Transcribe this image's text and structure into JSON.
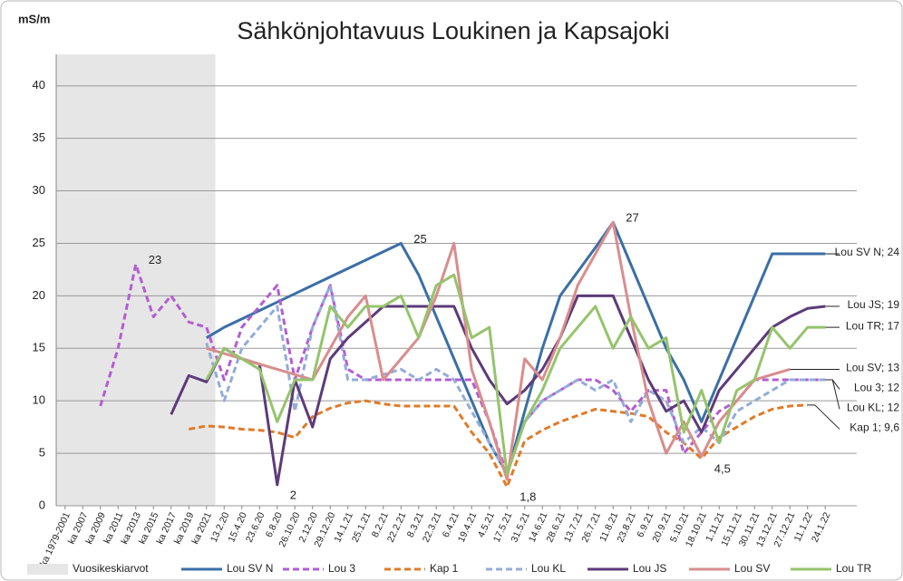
{
  "chart_data": {
    "type": "line",
    "title": "Sähkönjohtavuus Loukinen ja Kapsajoki",
    "y_label": "mS/m",
    "categories": [
      "ka 1979-2001",
      "ka 2007",
      "ka 2009",
      "ka 2011",
      "ka 2013",
      "ka 2015",
      "ka 2017",
      "ka 2019",
      "ka 2021",
      "13.2.20",
      "15.4.20",
      "23.6.20",
      "6.8.20",
      "26.10.20",
      "2.12.20",
      "29.12.20",
      "14.1.21",
      "25.1.21",
      "8.2.21",
      "22.2.21",
      "8.3.21",
      "22.3.21",
      "6.4.21",
      "19.4.21",
      "4.5.21",
      "17.5.21",
      "31.5.21",
      "14.6.21",
      "28.6.21",
      "13.7.21",
      "26.7.21",
      "11.8.21",
      "23.8.21",
      "6.9.21",
      "20.9.21",
      "5.10.21",
      "18.10.21",
      "1.11.21",
      "15.11.21",
      "30.11.21",
      "13.12.21",
      "27.12.21",
      "11.1.22",
      "24.1.22"
    ],
    "ylim": [
      0,
      43
    ],
    "yticks": [
      0,
      5,
      10,
      15,
      20,
      25,
      30,
      35,
      40
    ],
    "grid": true,
    "shaded": {
      "name": "Vuosikeskiarvot",
      "color": "#e6e6e6",
      "span": [
        0,
        8
      ]
    },
    "series": [
      {
        "name": "Lou SV N",
        "color": "#3b6fa6",
        "dashed": false,
        "end_label": "Lou SV N; 24",
        "values": [
          null,
          null,
          null,
          null,
          null,
          null,
          null,
          null,
          16,
          17,
          17.8,
          18.6,
          19.4,
          20.2,
          21,
          21.8,
          22.6,
          23.4,
          24.2,
          25,
          22,
          18,
          14,
          10,
          6,
          3,
          9,
          15,
          20,
          22.3,
          24.6,
          27,
          23,
          19,
          15,
          12,
          8,
          12,
          16,
          20,
          24,
          24,
          24,
          24
        ],
        "value_labels": [
          null,
          null,
          null,
          null,
          null,
          null,
          null,
          null,
          null,
          null,
          null,
          null,
          null,
          null,
          null,
          null,
          null,
          null,
          null,
          "25",
          null,
          null,
          null,
          null,
          null,
          null,
          null,
          null,
          null,
          null,
          null,
          "27",
          null,
          null,
          null,
          null,
          null,
          null,
          null,
          null,
          null,
          null,
          null,
          null
        ]
      },
      {
        "name": "Lou 3",
        "color": "#b45dd2",
        "dashed": true,
        "end_label": "Lou 3; 12",
        "values": [
          null,
          null,
          9.5,
          15,
          23,
          18,
          20,
          17.5,
          17,
          12,
          17,
          19,
          21,
          12,
          17,
          21,
          13,
          12,
          12,
          12,
          12,
          12,
          12,
          12,
          8,
          3,
          8,
          10,
          11,
          12,
          12,
          11,
          9,
          11,
          11,
          5,
          7,
          9,
          10,
          12,
          12,
          12,
          12,
          12
        ],
        "value_labels": [
          null,
          null,
          null,
          null,
          "23",
          null,
          null,
          null,
          null,
          null,
          null,
          null,
          null,
          null,
          null,
          null,
          null,
          null,
          null,
          null,
          null,
          null,
          null,
          null,
          null,
          null,
          null,
          null,
          null,
          null,
          null,
          null,
          null,
          null,
          null,
          null,
          null,
          null,
          null,
          null,
          null,
          null,
          null,
          null
        ]
      },
      {
        "name": "Kap 1",
        "color": "#e07b28",
        "dashed": true,
        "end_label": "Kap 1; 9,6",
        "values": [
          null,
          null,
          null,
          null,
          null,
          null,
          null,
          7.3,
          7.6,
          7.5,
          7.3,
          7.2,
          7,
          6.5,
          8.5,
          9.3,
          9.8,
          10,
          9.7,
          9.5,
          9.5,
          9.5,
          9.5,
          7,
          5,
          1.8,
          6.2,
          7.2,
          8,
          8.6,
          9.2,
          9,
          8.8,
          8.5,
          7,
          6,
          4.5,
          6.5,
          7.5,
          8.5,
          9.2,
          9.5,
          9.6,
          null
        ],
        "value_labels": [
          null,
          null,
          null,
          null,
          null,
          null,
          null,
          null,
          null,
          null,
          null,
          null,
          null,
          null,
          null,
          null,
          null,
          null,
          null,
          null,
          null,
          null,
          null,
          null,
          null,
          "1,8",
          null,
          null,
          null,
          null,
          null,
          null,
          null,
          null,
          null,
          null,
          "4,5",
          null,
          null,
          null,
          null,
          null,
          null,
          null
        ]
      },
      {
        "name": "Lou KL",
        "color": "#93acd8",
        "dashed": true,
        "end_label": "Lou KL; 12",
        "values": [
          null,
          null,
          null,
          null,
          null,
          null,
          null,
          null,
          15.5,
          10,
          15,
          17,
          19,
          9,
          17,
          21,
          12,
          12,
          12.5,
          13,
          12,
          13,
          12,
          9,
          6,
          3,
          8,
          10,
          11,
          12,
          11,
          12,
          8,
          11,
          10,
          6,
          7.5,
          6,
          9,
          10,
          11,
          12,
          12,
          12
        ]
      },
      {
        "name": "Lou JS",
        "color": "#5d3b7a",
        "dashed": false,
        "end_label": "Lou JS; 19",
        "values": [
          null,
          null,
          null,
          null,
          null,
          null,
          8.7,
          12.4,
          11.8,
          15,
          14,
          13.5,
          2,
          12,
          7.5,
          14,
          16,
          17.5,
          19,
          19,
          19,
          19,
          19,
          15,
          12,
          9.7,
          11,
          13,
          16,
          20,
          20,
          20,
          16,
          12,
          9,
          10,
          7,
          11,
          13,
          15,
          17,
          18,
          18.8,
          19
        ],
        "value_labels": [
          null,
          null,
          null,
          null,
          null,
          null,
          null,
          null,
          null,
          null,
          null,
          null,
          "2",
          null,
          null,
          null,
          null,
          null,
          null,
          null,
          null,
          null,
          null,
          null,
          null,
          null,
          null,
          null,
          null,
          null,
          null,
          null,
          null,
          null,
          null,
          null,
          null,
          null,
          null,
          null,
          null,
          null,
          null,
          null
        ]
      },
      {
        "name": "Lou SV",
        "color": "#d98d8d",
        "dashed": false,
        "end_label": "Lou SV; 13",
        "values": [
          null,
          null,
          null,
          null,
          null,
          null,
          null,
          null,
          15,
          14.5,
          14,
          13.5,
          13,
          12.5,
          12,
          15,
          18,
          20,
          12,
          14,
          16,
          20,
          25,
          13,
          8,
          2.5,
          14,
          12,
          16,
          21,
          24,
          27,
          18,
          10,
          5,
          8,
          4.7,
          8,
          10,
          12,
          12.5,
          13,
          null,
          null
        ]
      },
      {
        "name": "Lou TR",
        "color": "#95c46c",
        "dashed": false,
        "end_label": "Lou TR; 17",
        "values": [
          null,
          null,
          null,
          null,
          null,
          null,
          null,
          null,
          12,
          15,
          14,
          13,
          8,
          12,
          12,
          19,
          17,
          19,
          19,
          20,
          16,
          21,
          22,
          16,
          17,
          3,
          8,
          11,
          15,
          17,
          19,
          15,
          18,
          15,
          16,
          7,
          11,
          6,
          11,
          12,
          17,
          15,
          17,
          17
        ]
      }
    ]
  }
}
